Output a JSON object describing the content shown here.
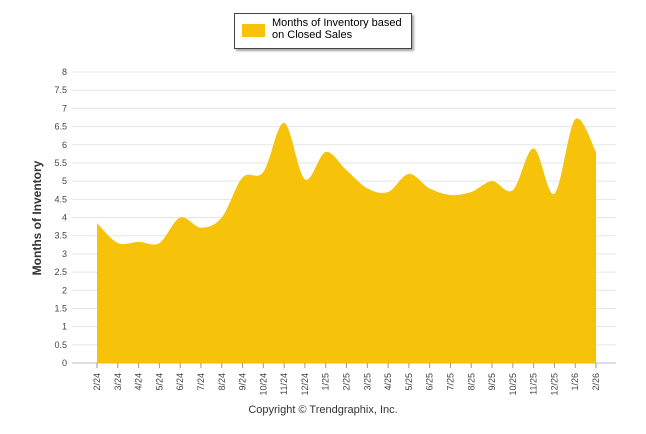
{
  "chart_data": {
    "type": "area",
    "title": "",
    "xlabel": "",
    "ylabel": "Months of Inventory",
    "ylim": [
      0,
      8
    ],
    "yticks": [
      0,
      0.5,
      1,
      1.5,
      2,
      2.5,
      3,
      3.5,
      4,
      4.5,
      5,
      5.5,
      6,
      6.5,
      7,
      7.5,
      8
    ],
    "categories": [
      "2/24",
      "3/24",
      "4/24",
      "5/24",
      "6/24",
      "7/24",
      "8/24",
      "9/24",
      "10/24",
      "11/24",
      "12/24",
      "1/25",
      "2/25",
      "3/25",
      "4/25",
      "5/25",
      "6/25",
      "7/25",
      "8/25",
      "9/25",
      "10/25",
      "11/25",
      "12/25",
      "1/26",
      "2/26"
    ],
    "series": [
      {
        "name": "Months of Inventory based on Closed Sales",
        "color": "#F7C20A",
        "values": [
          3.85,
          3.3,
          3.33,
          3.3,
          4.0,
          3.72,
          4.0,
          5.1,
          5.25,
          6.6,
          5.05,
          5.8,
          5.3,
          4.8,
          4.7,
          5.2,
          4.8,
          4.62,
          4.7,
          5.0,
          4.75,
          5.9,
          4.65,
          6.7,
          5.8
        ]
      }
    ],
    "grid": true,
    "legend": "top-center"
  },
  "legend": {
    "label": "Months of Inventory based on Closed Sales",
    "swatch_color": "#F7C20A"
  },
  "footer": {
    "credit": "Copyright © Trendgraphix, Inc."
  }
}
